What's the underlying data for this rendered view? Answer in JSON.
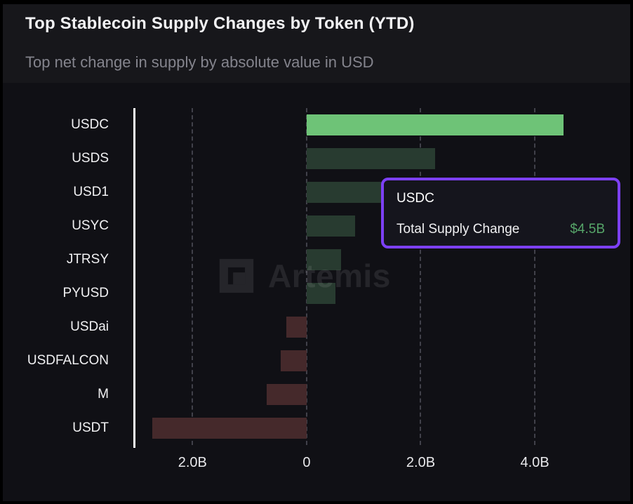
{
  "header": {
    "title": "Top Stablecoin Supply Changes by Token (YTD)",
    "subtitle": "Top net change in supply by absolute value in USD"
  },
  "watermark": {
    "text": "Artemis"
  },
  "tooltip": {
    "token": "USDC",
    "label": "Total Supply Change",
    "value": "$4.5B",
    "border_color": "#7d40f5",
    "value_color": "#56a569",
    "background": "#15151d"
  },
  "colors": {
    "highlight_bar": "#6ec377",
    "positive_bar": "#283b30",
    "negative_bar": "#45292b",
    "grid": "#41414a",
    "axis_line": "#ffffff",
    "panel_header": "#17171b",
    "panel_chart": "#101015"
  },
  "chart_data": {
    "type": "bar",
    "orientation": "horizontal",
    "title": "Top Stablecoin Supply Changes by Token (YTD)",
    "subtitle": "Top net change in supply by absolute value in USD",
    "unit": "billions USD",
    "categories": [
      "USDC",
      "USDS",
      "USD1",
      "USYC",
      "JTRSY",
      "PYUSD",
      "USDai",
      "USDFALCON",
      "M",
      "USDT"
    ],
    "values": [
      4.5,
      2.25,
      1.35,
      0.85,
      0.6,
      0.5,
      -0.35,
      -0.45,
      -0.7,
      -2.7
    ],
    "highlighted_category": "USDC",
    "xlim": [
      -3.0,
      5.5
    ],
    "x_ticks": [
      {
        "value": -2,
        "label": "2.0B"
      },
      {
        "value": 0,
        "label": "0"
      },
      {
        "value": 2,
        "label": "2.0B"
      },
      {
        "value": 4,
        "label": "4.0B"
      }
    ],
    "grid": "dashed-vertical",
    "legend": "none"
  }
}
